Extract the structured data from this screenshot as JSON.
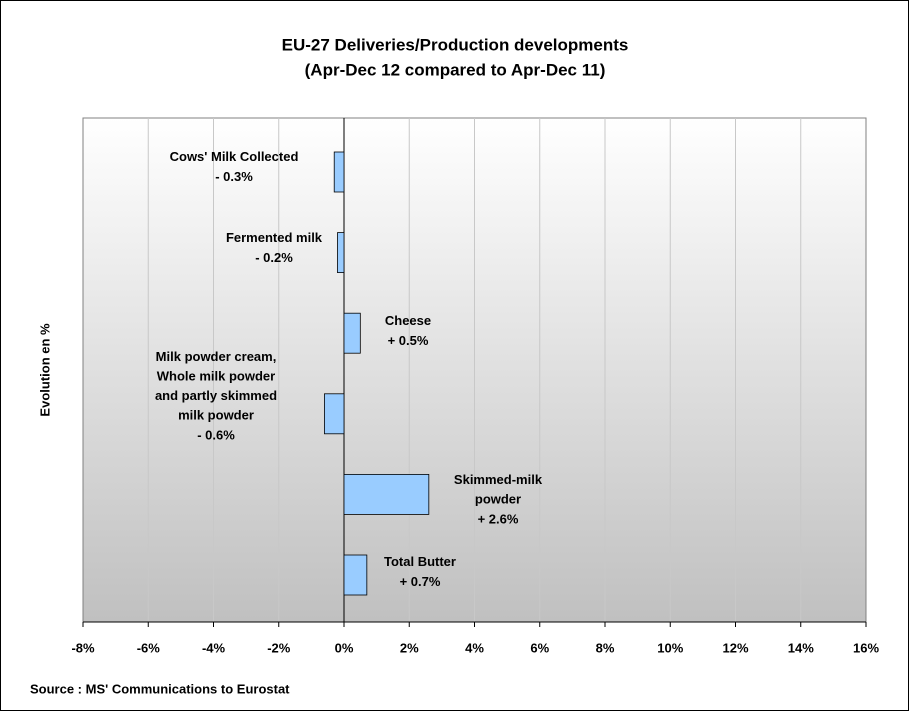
{
  "chart_data": {
    "type": "barh",
    "title": "EU-27 Deliveries/Production developments",
    "subtitle": "(Apr-Dec 12 compared to Apr-Dec 11)",
    "y_label": "Evolution en %",
    "source": "Source : MS' Communications to Eurostat",
    "categories": [
      "Cows' Milk Collected",
      "Fermented milk",
      "Cheese",
      "Milk powder cream,\nWhole milk powder\nand partly skimmed\nmilk powder",
      "Skimmed-milk\npowder",
      "Total Butter"
    ],
    "values": [
      -0.3,
      -0.2,
      0.5,
      -0.6,
      2.6,
      0.7
    ],
    "value_labels": [
      "- 0.3%",
      "- 0.2%",
      "+ 0.5%",
      "- 0.6%",
      "+ 2.6%",
      "+ 0.7%"
    ],
    "color": "#99ccff",
    "xlim": [
      -8,
      16
    ],
    "xticks": [
      {
        "value": -8,
        "label": "-8%"
      },
      {
        "value": -6,
        "label": "-6%"
      },
      {
        "value": -4,
        "label": "-4%"
      },
      {
        "value": -2,
        "label": "-2%"
      },
      {
        "value": 0,
        "label": "0%"
      },
      {
        "value": 2,
        "label": "2%"
      },
      {
        "value": 4,
        "label": "4%"
      },
      {
        "value": 6,
        "label": "6%"
      },
      {
        "value": 8,
        "label": "8%"
      },
      {
        "value": 10,
        "label": "10%"
      },
      {
        "value": 12,
        "label": "12%"
      },
      {
        "value": 14,
        "label": "14%"
      },
      {
        "value": 16,
        "label": "16%"
      }
    ],
    "grid": true
  }
}
